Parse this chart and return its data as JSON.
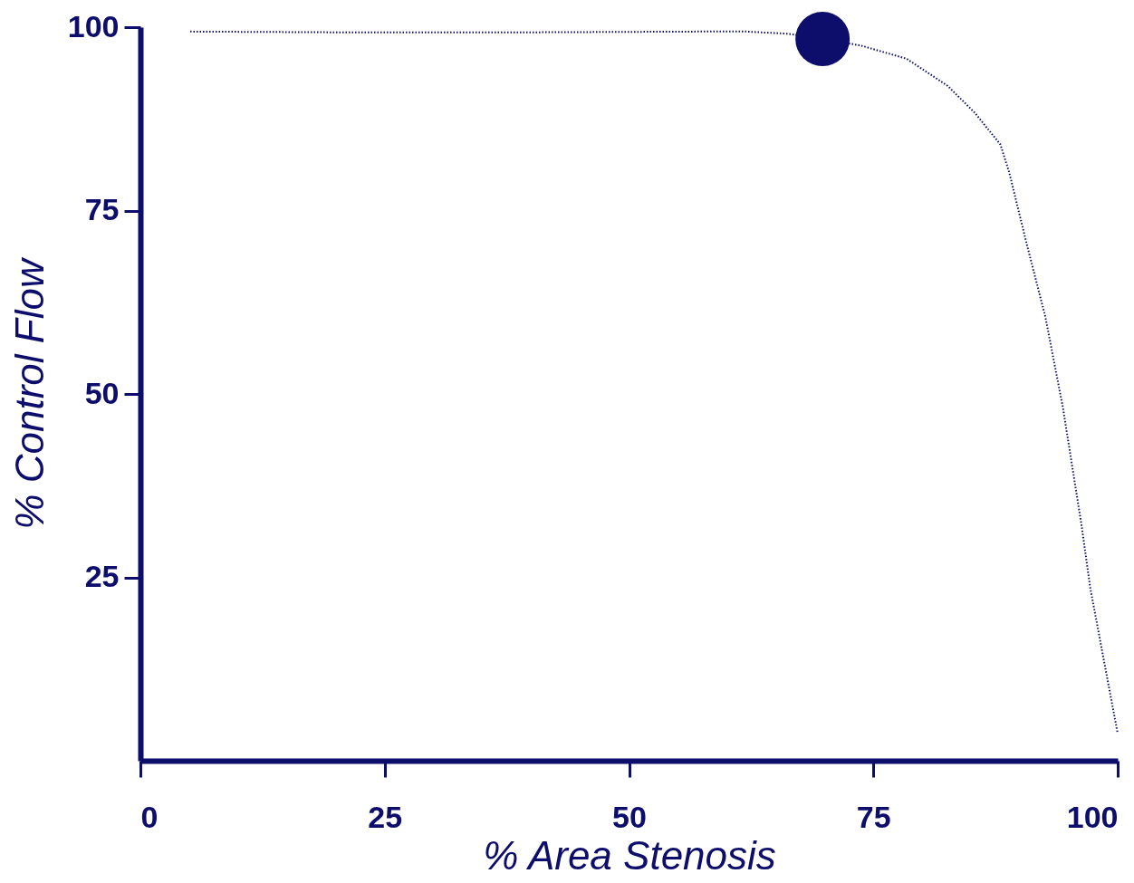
{
  "chart_data": {
    "type": "line",
    "xlabel": "% Area Stenosis",
    "ylabel": "% Control Flow",
    "xlim": [
      0,
      100
    ],
    "xticks": [
      0,
      25,
      50,
      75,
      100
    ],
    "ylim": [
      0,
      100
    ],
    "yticks": [
      25,
      50,
      75,
      100
    ],
    "grid": false,
    "legend": false,
    "series": [
      {
        "type": "line",
        "color": "#0d0d6b",
        "line_style": "dotted",
        "marker": "none",
        "x": [
          5.1,
          20,
          40,
          57,
          62,
          66.3,
          69.8,
          73.7,
          78.4,
          82.6,
          85.4,
          88,
          88.9,
          90.7,
          92.6,
          94.4,
          96.3,
          97.2,
          98.6,
          100
        ],
        "values": [
          99.4,
          99.3,
          99.3,
          99.4,
          99.4,
          99.1,
          98.4,
          97.5,
          95.7,
          92,
          88.3,
          84,
          80.2,
          70.4,
          60.5,
          48.1,
          32.1,
          23.5,
          13.6,
          3.7
        ]
      },
      {
        "type": "scatter",
        "color": "#0d0d6b",
        "marker": "circle",
        "x": [
          69.8
        ],
        "values": [
          98.4
        ]
      }
    ]
  }
}
